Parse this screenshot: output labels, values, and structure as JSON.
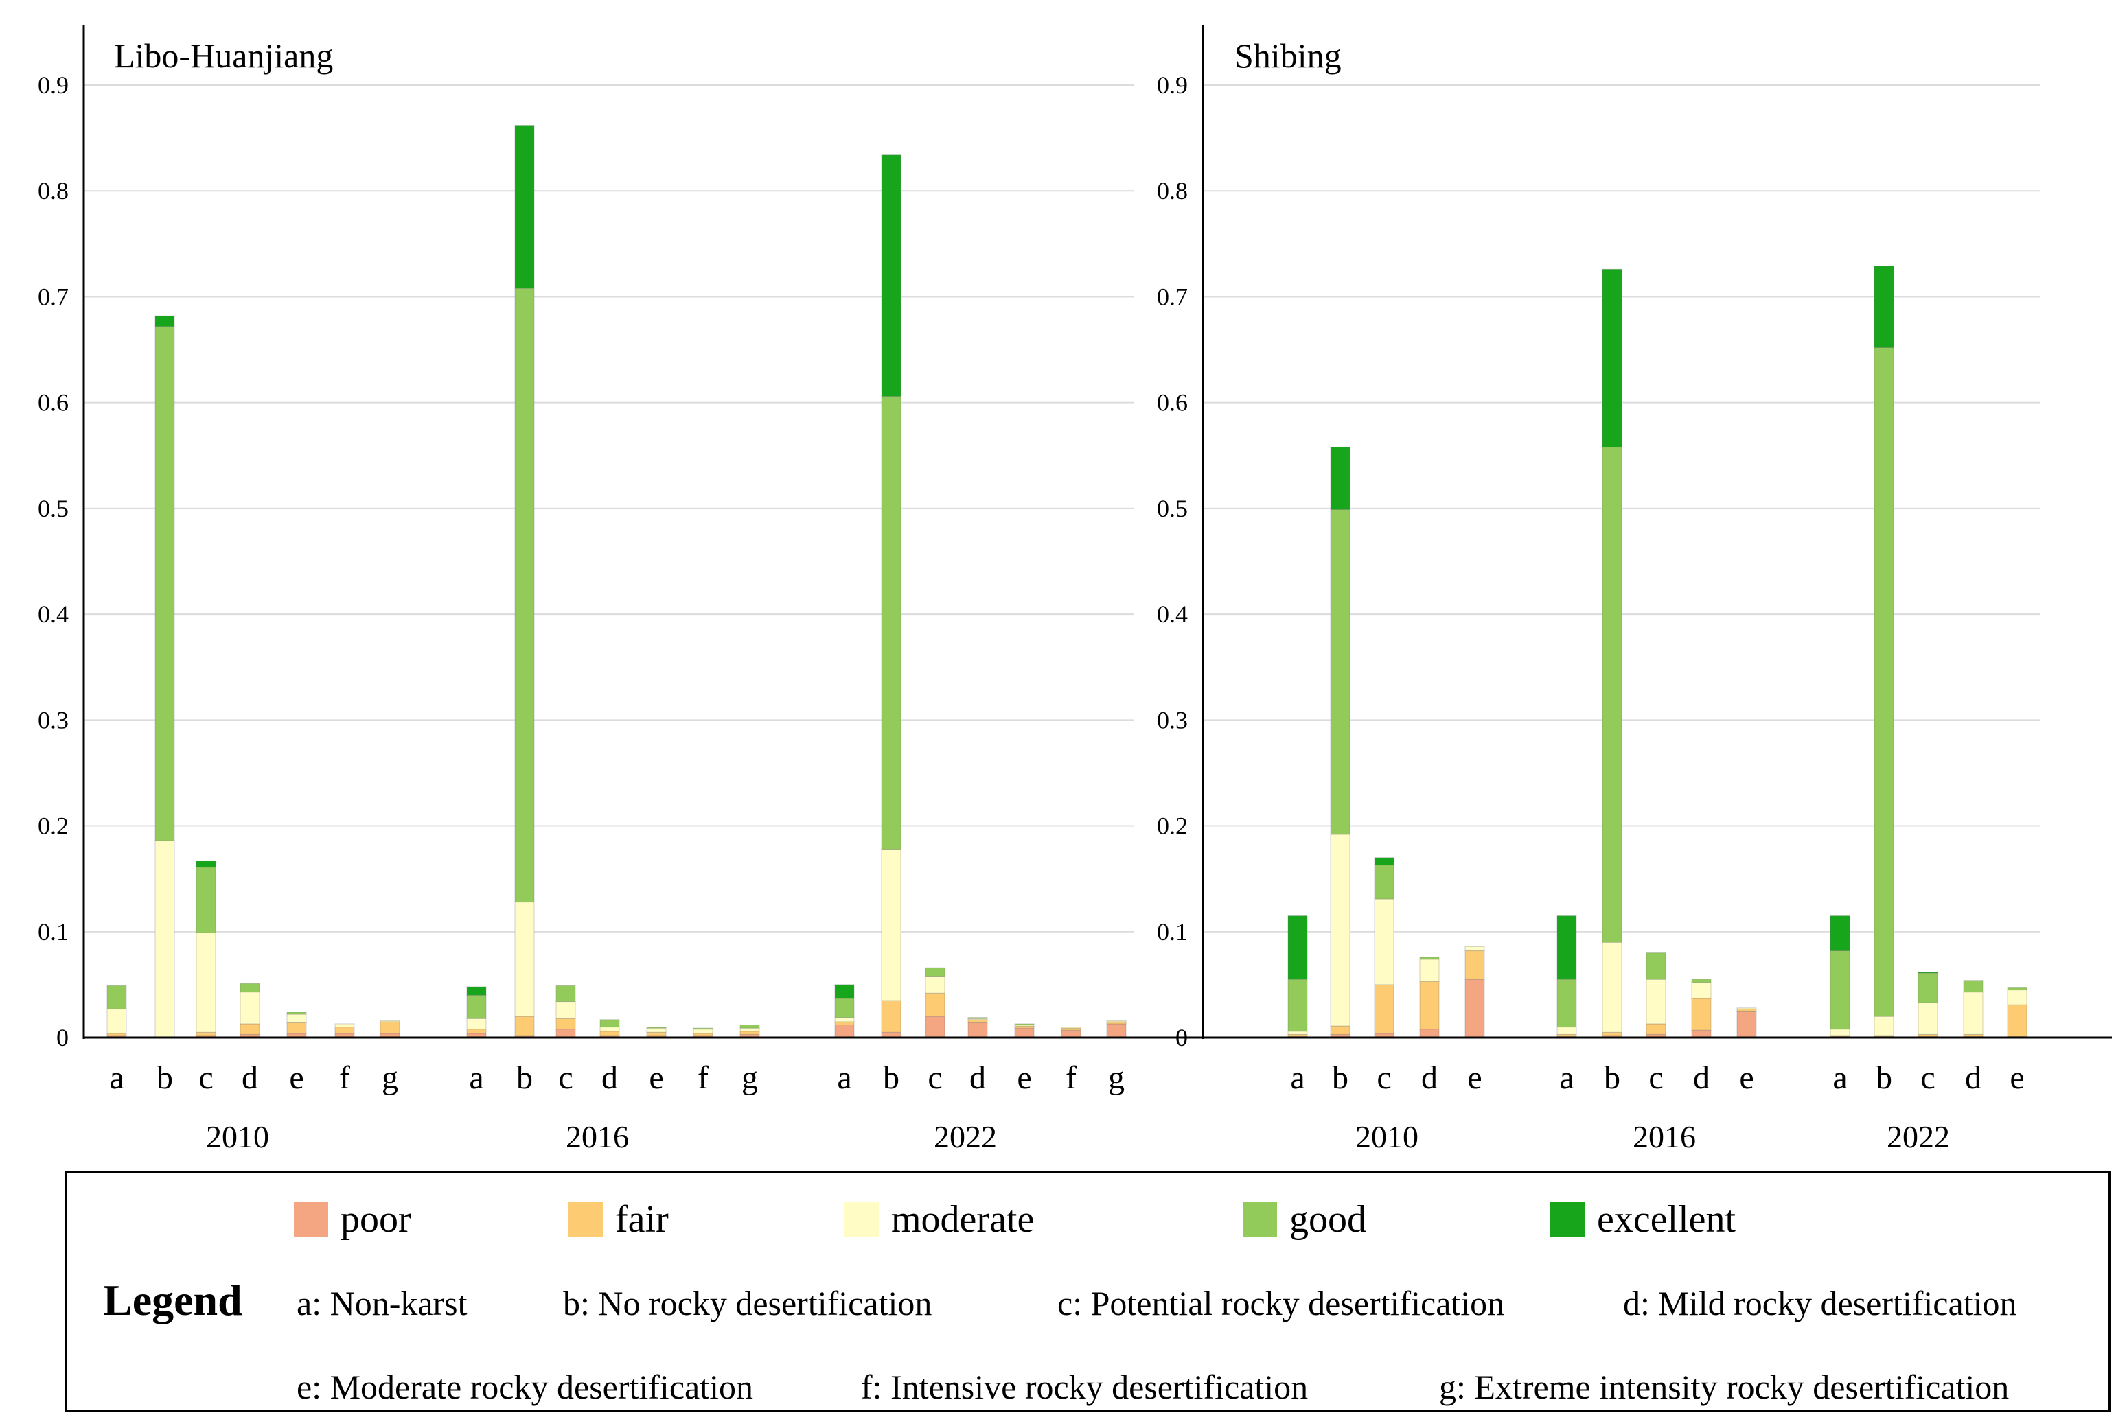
{
  "chart_data": {
    "type": "bar",
    "stacked": true,
    "segment_order": [
      "poor",
      "fair",
      "moderate",
      "good",
      "excellent"
    ],
    "colors": {
      "poor": "#F4A582",
      "fair": "#FDCB72",
      "moderate": "#FFFDC5",
      "good": "#92CB5A",
      "excellent": "#17A51C"
    },
    "ylim": [
      0,
      0.9
    ],
    "yticks": [
      "0",
      "0.1",
      "0.2",
      "0.3",
      "0.4",
      "0.5",
      "0.6",
      "0.7",
      "0.8",
      "0.9"
    ],
    "grid": true,
    "panels": [
      {
        "title": "Libo-Huanjiang",
        "groups": [
          {
            "year": "2010",
            "bars": [
              {
                "cat": "a",
                "poor": 0.002,
                "fair": 0.002,
                "moderate": 0.023,
                "good": 0.022,
                "excellent": 0.0
              },
              {
                "cat": "b",
                "poor": 0.0,
                "fair": 0.0,
                "moderate": 0.186,
                "good": 0.486,
                "excellent": 0.01
              },
              {
                "cat": "c",
                "poor": 0.002,
                "fair": 0.003,
                "moderate": 0.094,
                "good": 0.062,
                "excellent": 0.006
              },
              {
                "cat": "d",
                "poor": 0.003,
                "fair": 0.01,
                "moderate": 0.03,
                "good": 0.008,
                "excellent": 0.0
              },
              {
                "cat": "e",
                "poor": 0.004,
                "fair": 0.01,
                "moderate": 0.008,
                "good": 0.002,
                "excellent": 0.0
              },
              {
                "cat": "f",
                "poor": 0.004,
                "fair": 0.006,
                "moderate": 0.003,
                "good": 0.0,
                "excellent": 0.0
              },
              {
                "cat": "g",
                "poor": 0.004,
                "fair": 0.011,
                "moderate": 0.001,
                "good": 0.0,
                "excellent": 0.0
              }
            ]
          },
          {
            "year": "2016",
            "bars": [
              {
                "cat": "a",
                "poor": 0.004,
                "fair": 0.004,
                "moderate": 0.01,
                "good": 0.022,
                "excellent": 0.008
              },
              {
                "cat": "b",
                "poor": 0.002,
                "fair": 0.018,
                "moderate": 0.108,
                "good": 0.58,
                "excellent": 0.154
              },
              {
                "cat": "c",
                "poor": 0.008,
                "fair": 0.01,
                "moderate": 0.016,
                "good": 0.015,
                "excellent": 0.0
              },
              {
                "cat": "d",
                "poor": 0.002,
                "fair": 0.004,
                "moderate": 0.004,
                "good": 0.007,
                "excellent": 0.0
              },
              {
                "cat": "e",
                "poor": 0.002,
                "fair": 0.003,
                "moderate": 0.004,
                "good": 0.001,
                "excellent": 0.0
              },
              {
                "cat": "f",
                "poor": 0.002,
                "fair": 0.002,
                "moderate": 0.004,
                "good": 0.001,
                "excellent": 0.0
              },
              {
                "cat": "g",
                "poor": 0.003,
                "fair": 0.003,
                "moderate": 0.003,
                "good": 0.003,
                "excellent": 0.0
              }
            ]
          },
          {
            "year": "2022",
            "bars": [
              {
                "cat": "a",
                "poor": 0.012,
                "fair": 0.003,
                "moderate": 0.004,
                "good": 0.018,
                "excellent": 0.013
              },
              {
                "cat": "b",
                "poor": 0.005,
                "fair": 0.03,
                "moderate": 0.143,
                "good": 0.428,
                "excellent": 0.228
              },
              {
                "cat": "c",
                "poor": 0.02,
                "fair": 0.022,
                "moderate": 0.016,
                "good": 0.008,
                "excellent": 0.0
              },
              {
                "cat": "d",
                "poor": 0.014,
                "fair": 0.003,
                "moderate": 0.001,
                "good": 0.001,
                "excellent": 0.0
              },
              {
                "cat": "e",
                "poor": 0.009,
                "fair": 0.002,
                "moderate": 0.001,
                "good": 0.001,
                "excellent": 0.0
              },
              {
                "cat": "f",
                "poor": 0.007,
                "fair": 0.002,
                "moderate": 0.001,
                "good": 0.0,
                "excellent": 0.0
              },
              {
                "cat": "g",
                "poor": 0.013,
                "fair": 0.002,
                "moderate": 0.001,
                "good": 0.0,
                "excellent": 0.0
              }
            ]
          }
        ]
      },
      {
        "title": "Shibing",
        "groups": [
          {
            "year": "2010",
            "bars": [
              {
                "cat": "a",
                "poor": 0.001,
                "fair": 0.002,
                "moderate": 0.003,
                "good": 0.049,
                "excellent": 0.06
              },
              {
                "cat": "b",
                "poor": 0.003,
                "fair": 0.008,
                "moderate": 0.181,
                "good": 0.307,
                "excellent": 0.059
              },
              {
                "cat": "c",
                "poor": 0.004,
                "fair": 0.046,
                "moderate": 0.081,
                "good": 0.032,
                "excellent": 0.007
              },
              {
                "cat": "d",
                "poor": 0.008,
                "fair": 0.045,
                "moderate": 0.021,
                "good": 0.002,
                "excellent": 0.0
              },
              {
                "cat": "e",
                "poor": 0.055,
                "fair": 0.027,
                "moderate": 0.004,
                "good": 0.0,
                "excellent": 0.0
              }
            ]
          },
          {
            "year": "2016",
            "bars": [
              {
                "cat": "a",
                "poor": 0.001,
                "fair": 0.002,
                "moderate": 0.007,
                "good": 0.045,
                "excellent": 0.06
              },
              {
                "cat": "b",
                "poor": 0.002,
                "fair": 0.003,
                "moderate": 0.085,
                "good": 0.468,
                "excellent": 0.168
              },
              {
                "cat": "c",
                "poor": 0.003,
                "fair": 0.01,
                "moderate": 0.042,
                "good": 0.025,
                "excellent": 0.0
              },
              {
                "cat": "d",
                "poor": 0.007,
                "fair": 0.03,
                "moderate": 0.015,
                "good": 0.003,
                "excellent": 0.0
              },
              {
                "cat": "e",
                "poor": 0.025,
                "fair": 0.002,
                "moderate": 0.001,
                "good": 0.0,
                "excellent": 0.0
              }
            ]
          },
          {
            "year": "2022",
            "bars": [
              {
                "cat": "a",
                "poor": 0.001,
                "fair": 0.001,
                "moderate": 0.006,
                "good": 0.074,
                "excellent": 0.033
              },
              {
                "cat": "b",
                "poor": 0.001,
                "fair": 0.001,
                "moderate": 0.018,
                "good": 0.632,
                "excellent": 0.077
              },
              {
                "cat": "c",
                "poor": 0.001,
                "fair": 0.002,
                "moderate": 0.03,
                "good": 0.028,
                "excellent": 0.001
              },
              {
                "cat": "d",
                "poor": 0.001,
                "fair": 0.002,
                "moderate": 0.04,
                "good": 0.011,
                "excellent": 0.0
              },
              {
                "cat": "e",
                "poor": 0.001,
                "fair": 0.03,
                "moderate": 0.014,
                "good": 0.002,
                "excellent": 0.0
              }
            ]
          }
        ]
      }
    ],
    "legend": {
      "title": "Legend",
      "items": [
        {
          "key": "poor",
          "label": "poor"
        },
        {
          "key": "fair",
          "label": "fair"
        },
        {
          "key": "moderate",
          "label": "moderate"
        },
        {
          "key": "good",
          "label": "good"
        },
        {
          "key": "excellent",
          "label": "excellent"
        }
      ],
      "definitions": [
        "a: Non-karst",
        "b: No rocky desertification",
        "c: Potential rocky desertification",
        "d: Mild rocky  desertification",
        "e: Moderate rocky desertification",
        "f: Intensive  rocky desertification",
        "g: Extreme intensity rocky desertification"
      ]
    }
  }
}
